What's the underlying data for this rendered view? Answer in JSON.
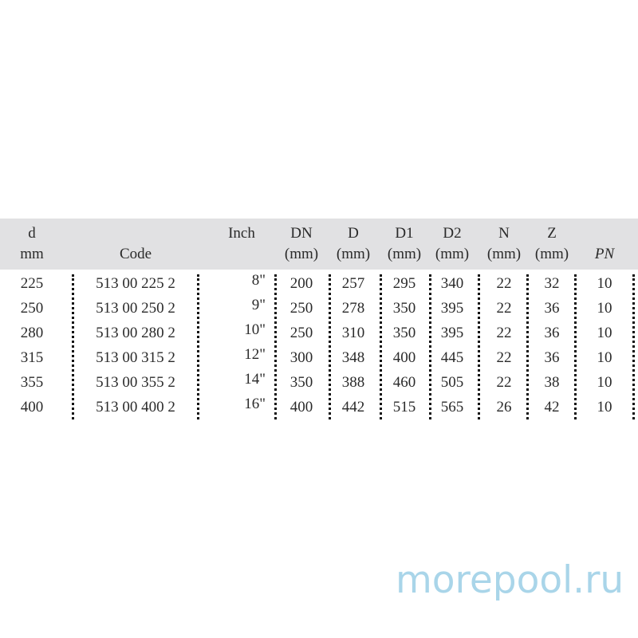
{
  "headers": [
    {
      "top": "d",
      "bottom": "mm"
    },
    {
      "top": "",
      "bottom": "Code"
    },
    {
      "top": "Inch",
      "bottom": ""
    },
    {
      "top": "DN",
      "bottom": "(mm)"
    },
    {
      "top": "D",
      "bottom": "(mm)"
    },
    {
      "top": "D1",
      "bottom": "(mm)"
    },
    {
      "top": "D2",
      "bottom": "(mm)"
    },
    {
      "top": "N",
      "bottom": "(mm)"
    },
    {
      "top": "Z",
      "bottom": "(mm)"
    },
    {
      "top": "",
      "bottom": "PN"
    }
  ],
  "rows": [
    [
      "225",
      "513 00 225 2",
      "8\"",
      "200",
      "257",
      "295",
      "340",
      "22",
      "32",
      "10"
    ],
    [
      "250",
      "513 00 250 2",
      "9\"",
      "250",
      "278",
      "350",
      "395",
      "22",
      "36",
      "10"
    ],
    [
      "280",
      "513 00 280 2",
      "10\"",
      "250",
      "310",
      "350",
      "395",
      "22",
      "36",
      "10"
    ],
    [
      "315",
      "513 00 315 2",
      "12\"",
      "300",
      "348",
      "400",
      "445",
      "22",
      "36",
      "10"
    ],
    [
      "355",
      "513 00 355 2",
      "14\"",
      "350",
      "388",
      "460",
      "505",
      "22",
      "38",
      "10"
    ],
    [
      "400",
      "513 00 400 2",
      "16\"",
      "400",
      "442",
      "515",
      "565",
      "26",
      "42",
      "10"
    ]
  ],
  "watermark": "morepool.ru",
  "colors": {
    "header_bg": "#e1e1e3",
    "watermark": "#a9d5e9"
  }
}
